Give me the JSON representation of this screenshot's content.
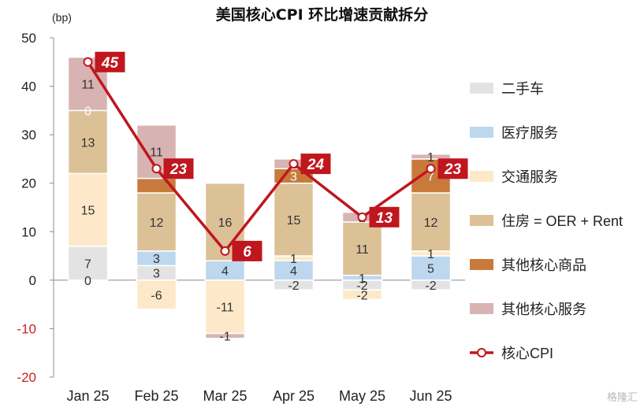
{
  "chart_data": {
    "type": "bar",
    "stacked": true,
    "title": "美国核心CPI 环比增速贡献拆分",
    "unit_label": "(bp)",
    "categories": [
      "Jan 25",
      "Feb 25",
      "Mar 25",
      "Apr 25",
      "May 25",
      "Jun 25"
    ],
    "ylim": [
      -20,
      50
    ],
    "yticks": [
      -20,
      -10,
      0,
      10,
      20,
      30,
      40,
      50
    ],
    "grid": false,
    "legend_position": "right",
    "series": [
      {
        "name": "二手车",
        "color": "#e3e3e3",
        "values": [
          7,
          3,
          null,
          -2,
          -2,
          -2
        ],
        "labels": [
          "7",
          "3",
          "",
          "-2",
          "-2",
          "-2"
        ]
      },
      {
        "name": "医疗服务",
        "color": "#bdd7ee",
        "values": [
          null,
          3,
          4,
          4,
          1,
          5
        ],
        "labels": [
          "",
          "3",
          "4",
          "4",
          "1",
          "5"
        ]
      },
      {
        "name": "交通服务",
        "color": "#fde9c9",
        "values": [
          15,
          -6,
          -11,
          1,
          -2,
          1
        ],
        "labels": [
          "15",
          "-6",
          "-11",
          "1",
          "-2",
          "1"
        ]
      },
      {
        "name": "住房 = OER + Rent",
        "color": "#dcc197",
        "values": [
          13,
          12,
          16,
          15,
          11,
          12
        ],
        "labels": [
          "13",
          "12",
          "16",
          "15",
          "11",
          "12"
        ]
      },
      {
        "name": "其他核心商品",
        "color": "#c87a3c",
        "values": [
          0,
          3,
          null,
          3,
          null,
          7
        ],
        "labels": [
          "0",
          "",
          "",
          "3",
          "",
          "7"
        ]
      },
      {
        "name": "其他核心服务",
        "color": "#d7b3b2",
        "values": [
          11,
          11,
          -1,
          2,
          2,
          1
        ],
        "labels": [
          "11",
          "11",
          "-1",
          "2",
          "2",
          "1"
        ]
      }
    ],
    "line_series": {
      "name": "核心CPI",
      "color": "#c0161e",
      "values": [
        45,
        23,
        6,
        24,
        13,
        23
      ],
      "labels": [
        "45",
        "23",
        "6",
        "24",
        "13",
        "23"
      ]
    },
    "extra_labels": [
      {
        "category": "Jan 25",
        "value": 0,
        "text": "0"
      }
    ]
  },
  "watermark": "格隆汇"
}
